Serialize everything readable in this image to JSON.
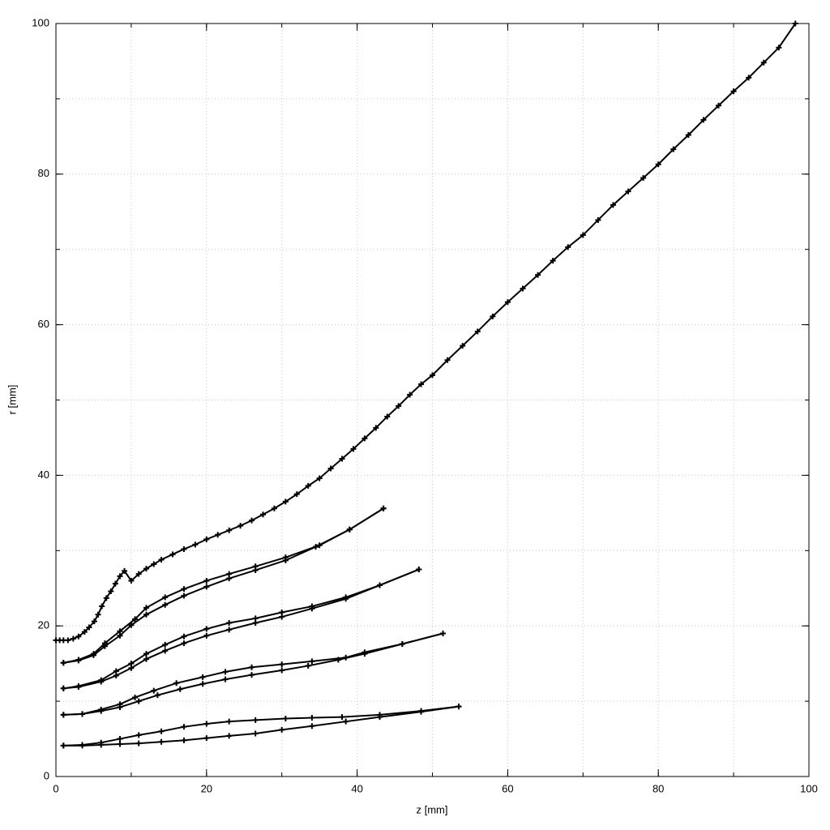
{
  "chart_data": {
    "type": "line",
    "color": "#000000",
    "grid": true,
    "xlabel": "z [mm]",
    "ylabel": "r [mm]",
    "xlim": [
      0,
      100
    ],
    "ylim": [
      0,
      100
    ],
    "xticks": [
      0,
      20,
      40,
      60,
      80,
      100
    ],
    "yticks": [
      0,
      20,
      40,
      60,
      80,
      100
    ],
    "xgrid": [
      10,
      20,
      30,
      40,
      50,
      60,
      70,
      80,
      90
    ],
    "ygrid": [
      10,
      20,
      30,
      40,
      50,
      60,
      70,
      80,
      90
    ],
    "series": [
      {
        "x": [
          0,
          0.5,
          1,
          1.6,
          2.3,
          3,
          3.8,
          4.4,
          5.1,
          5.6,
          6.1,
          6.7,
          7.3,
          7.9,
          8.5,
          9.1,
          10,
          11,
          12,
          13,
          14,
          15.5,
          17,
          18.5,
          20,
          21.5,
          23,
          24.5,
          26,
          27.5,
          29,
          30.5,
          32,
          33.5,
          35,
          36.5,
          38,
          39.5,
          41,
          42.5,
          44,
          45.5,
          47,
          48.5,
          50,
          52,
          54,
          56,
          58,
          60,
          62,
          64,
          66,
          68,
          70,
          72,
          74,
          76,
          78,
          80,
          82,
          84,
          86,
          88,
          90,
          92,
          94,
          96,
          98.2
        ],
        "values": [
          18.1,
          18.1,
          18.1,
          18.1,
          18.3,
          18.6,
          19.2,
          19.8,
          20.6,
          21.5,
          22.6,
          23.7,
          24.6,
          25.6,
          26.6,
          27.3,
          26.0,
          26.9,
          27.6,
          28.2,
          28.8,
          29.5,
          30.2,
          30.8,
          31.5,
          32.1,
          32.7,
          33.3,
          34.0,
          34.8,
          35.6,
          36.5,
          37.5,
          38.6,
          39.6,
          40.9,
          42.2,
          43.5,
          44.9,
          46.3,
          47.8,
          49.2,
          50.7,
          52.1,
          53.3,
          55.3,
          57.2,
          59.1,
          61.1,
          63.0,
          64.8,
          66.6,
          68.5,
          70.3,
          71.9,
          73.9,
          75.9,
          77.7,
          79.5,
          81.3,
          83.3,
          85.2,
          87.2,
          89.1,
          91.0,
          92.8,
          94.8,
          96.8,
          100
        ]
      },
      {
        "x": [
          1,
          3,
          5,
          6.5,
          8.5,
          10.5,
          12,
          14.5,
          17,
          20,
          23,
          26.5,
          30.5,
          35,
          39,
          43.5
        ],
        "values": [
          15.1,
          15.5,
          16.3,
          17.7,
          19.3,
          20.9,
          22.4,
          23.8,
          24.9,
          26.0,
          26.9,
          27.9,
          29.1,
          30.7,
          32.8,
          35.6
        ]
      },
      {
        "x": [
          1,
          3,
          5,
          6.5,
          8.5,
          10,
          12,
          14.5,
          17,
          20,
          23,
          26.5,
          30.5,
          34.5,
          39,
          43.5
        ],
        "values": [
          15.1,
          15.4,
          16.1,
          17.3,
          18.7,
          20.1,
          21.5,
          22.8,
          24.0,
          25.2,
          26.3,
          27.4,
          28.7,
          30.5,
          32.8,
          35.6
        ]
      },
      {
        "x": [
          1,
          3,
          6,
          8,
          10,
          12,
          14.5,
          17,
          20,
          23,
          26.5,
          30,
          34,
          38.5,
          43,
          48.2
        ],
        "values": [
          11.7,
          12.0,
          12.8,
          14.0,
          15.0,
          16.3,
          17.5,
          18.6,
          19.6,
          20.4,
          21.0,
          21.8,
          22.6,
          23.8,
          25.4,
          27.5
        ]
      },
      {
        "x": [
          1,
          3,
          6,
          8,
          10,
          12,
          14.5,
          17,
          20,
          23,
          26.5,
          30,
          34,
          38.5,
          43,
          48.2
        ],
        "values": [
          11.7,
          11.9,
          12.6,
          13.4,
          14.4,
          15.6,
          16.7,
          17.7,
          18.7,
          19.5,
          20.4,
          21.2,
          22.3,
          23.6,
          25.4,
          27.5
        ]
      },
      {
        "x": [
          1,
          3.5,
          6,
          8.5,
          10.5,
          13,
          16,
          19.5,
          22.5,
          26,
          30,
          34,
          38.5,
          41,
          46,
          51.4
        ],
        "values": [
          8.2,
          8.3,
          8.9,
          9.6,
          10.5,
          11.4,
          12.4,
          13.2,
          13.9,
          14.5,
          14.9,
          15.3,
          15.8,
          16.5,
          17.6,
          19.0
        ]
      },
      {
        "x": [
          1,
          3.5,
          6,
          8.5,
          11,
          13.5,
          16.5,
          19.5,
          22.5,
          26,
          30,
          33.5,
          37.5,
          41,
          46,
          51.4
        ],
        "values": [
          8.2,
          8.3,
          8.7,
          9.2,
          10.0,
          10.8,
          11.6,
          12.3,
          12.9,
          13.5,
          14.1,
          14.7,
          15.5,
          16.3,
          17.6,
          19.0
        ]
      },
      {
        "x": [
          1,
          3.5,
          6,
          8.5,
          11,
          14,
          17,
          20,
          23,
          26.5,
          30.5,
          34,
          38,
          43,
          48.5,
          53.5
        ],
        "values": [
          4.1,
          4.2,
          4.5,
          5.0,
          5.5,
          6.0,
          6.6,
          7.0,
          7.3,
          7.5,
          7.7,
          7.8,
          7.9,
          8.2,
          8.7,
          9.3
        ]
      },
      {
        "x": [
          1,
          3.5,
          6,
          8.5,
          11,
          14,
          17,
          20,
          23,
          26.5,
          30,
          34,
          38.5,
          43,
          48.5,
          53.5
        ],
        "values": [
          4.1,
          4.1,
          4.2,
          4.3,
          4.4,
          4.6,
          4.8,
          5.1,
          5.4,
          5.7,
          6.2,
          6.7,
          7.3,
          7.9,
          8.6,
          9.3
        ]
      }
    ]
  }
}
